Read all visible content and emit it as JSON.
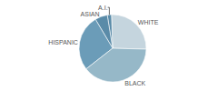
{
  "chart_data": {
    "type": "pie",
    "categories": [
      "WHITE",
      "A.I.",
      "ASIAN",
      "HISPANIC",
      "BLACK"
    ],
    "values": [
      26,
      2,
      6,
      27,
      39
    ],
    "colors": [
      "#c5d5de",
      "#5a8ba8",
      "#5a8ba8",
      "#6b9cb8",
      "#96b8c8"
    ]
  }
}
